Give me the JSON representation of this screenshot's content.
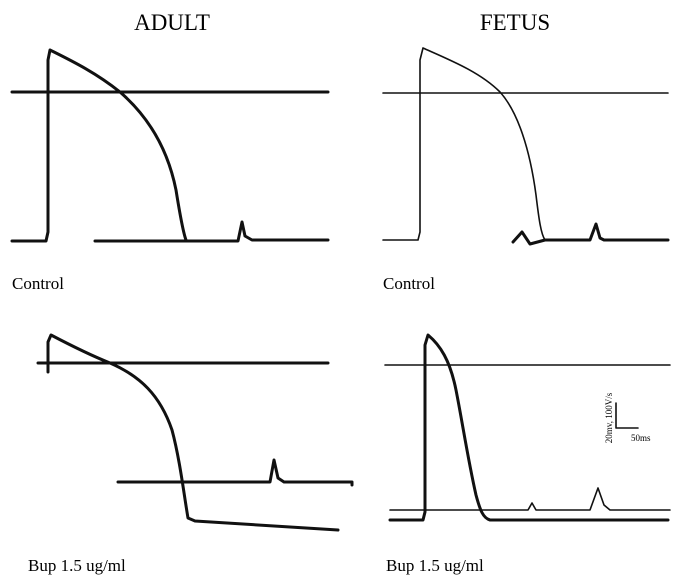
{
  "columns": [
    {
      "title": "ADULT",
      "panels": [
        {
          "label": "Control"
        },
        {
          "label": "Bup 1.5 ug/ml"
        }
      ]
    },
    {
      "title": "FETUS",
      "panels": [
        {
          "label": "Control"
        },
        {
          "label": "Bup 1.5 ug/ml"
        }
      ]
    }
  ],
  "scale_bar": {
    "vertical": "20mv, 100V/s",
    "horizontal": "50ms"
  }
}
